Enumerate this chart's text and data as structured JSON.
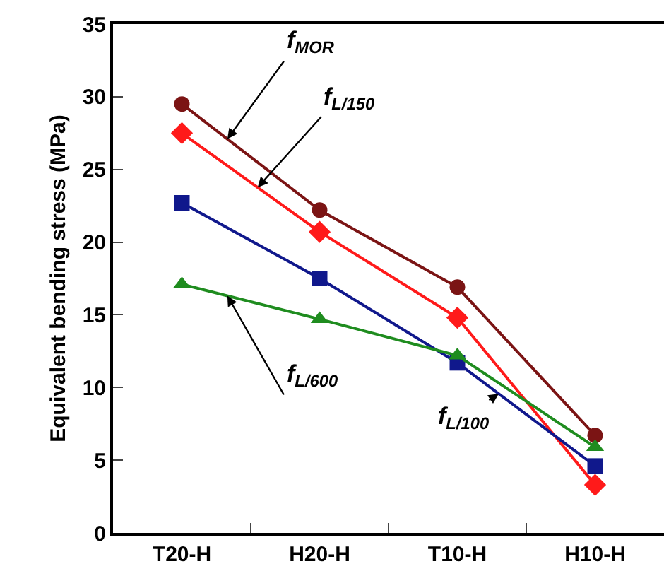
{
  "chart_data": {
    "type": "line",
    "ylabel": "Equivalent bending stress (MPa)",
    "categories": [
      "T20-H",
      "H20-H",
      "T10-H",
      "H10-H"
    ],
    "ylim": [
      0,
      35
    ],
    "yticks": [
      0,
      5,
      10,
      15,
      20,
      25,
      30,
      35
    ],
    "legend": false,
    "series": [
      {
        "name": "f$_{MOR}$",
        "color": "#7b1414",
        "marker": "circle",
        "values": [
          29.5,
          22.2,
          16.9,
          6.7
        ]
      },
      {
        "name": "f$_{L/150}$",
        "color": "#ff1a1a",
        "marker": "diamond",
        "values": [
          27.5,
          20.7,
          14.8,
          3.3
        ]
      },
      {
        "name": "f$_{L/100}$",
        "color": "#10188c",
        "marker": "square",
        "values": [
          22.7,
          17.5,
          11.7,
          4.6
        ]
      },
      {
        "name": "f$_{L/600}$",
        "color": "#1f8c1f",
        "marker": "triangle",
        "values": [
          17.1,
          14.7,
          12.2,
          5.9
        ]
      }
    ]
  }
}
